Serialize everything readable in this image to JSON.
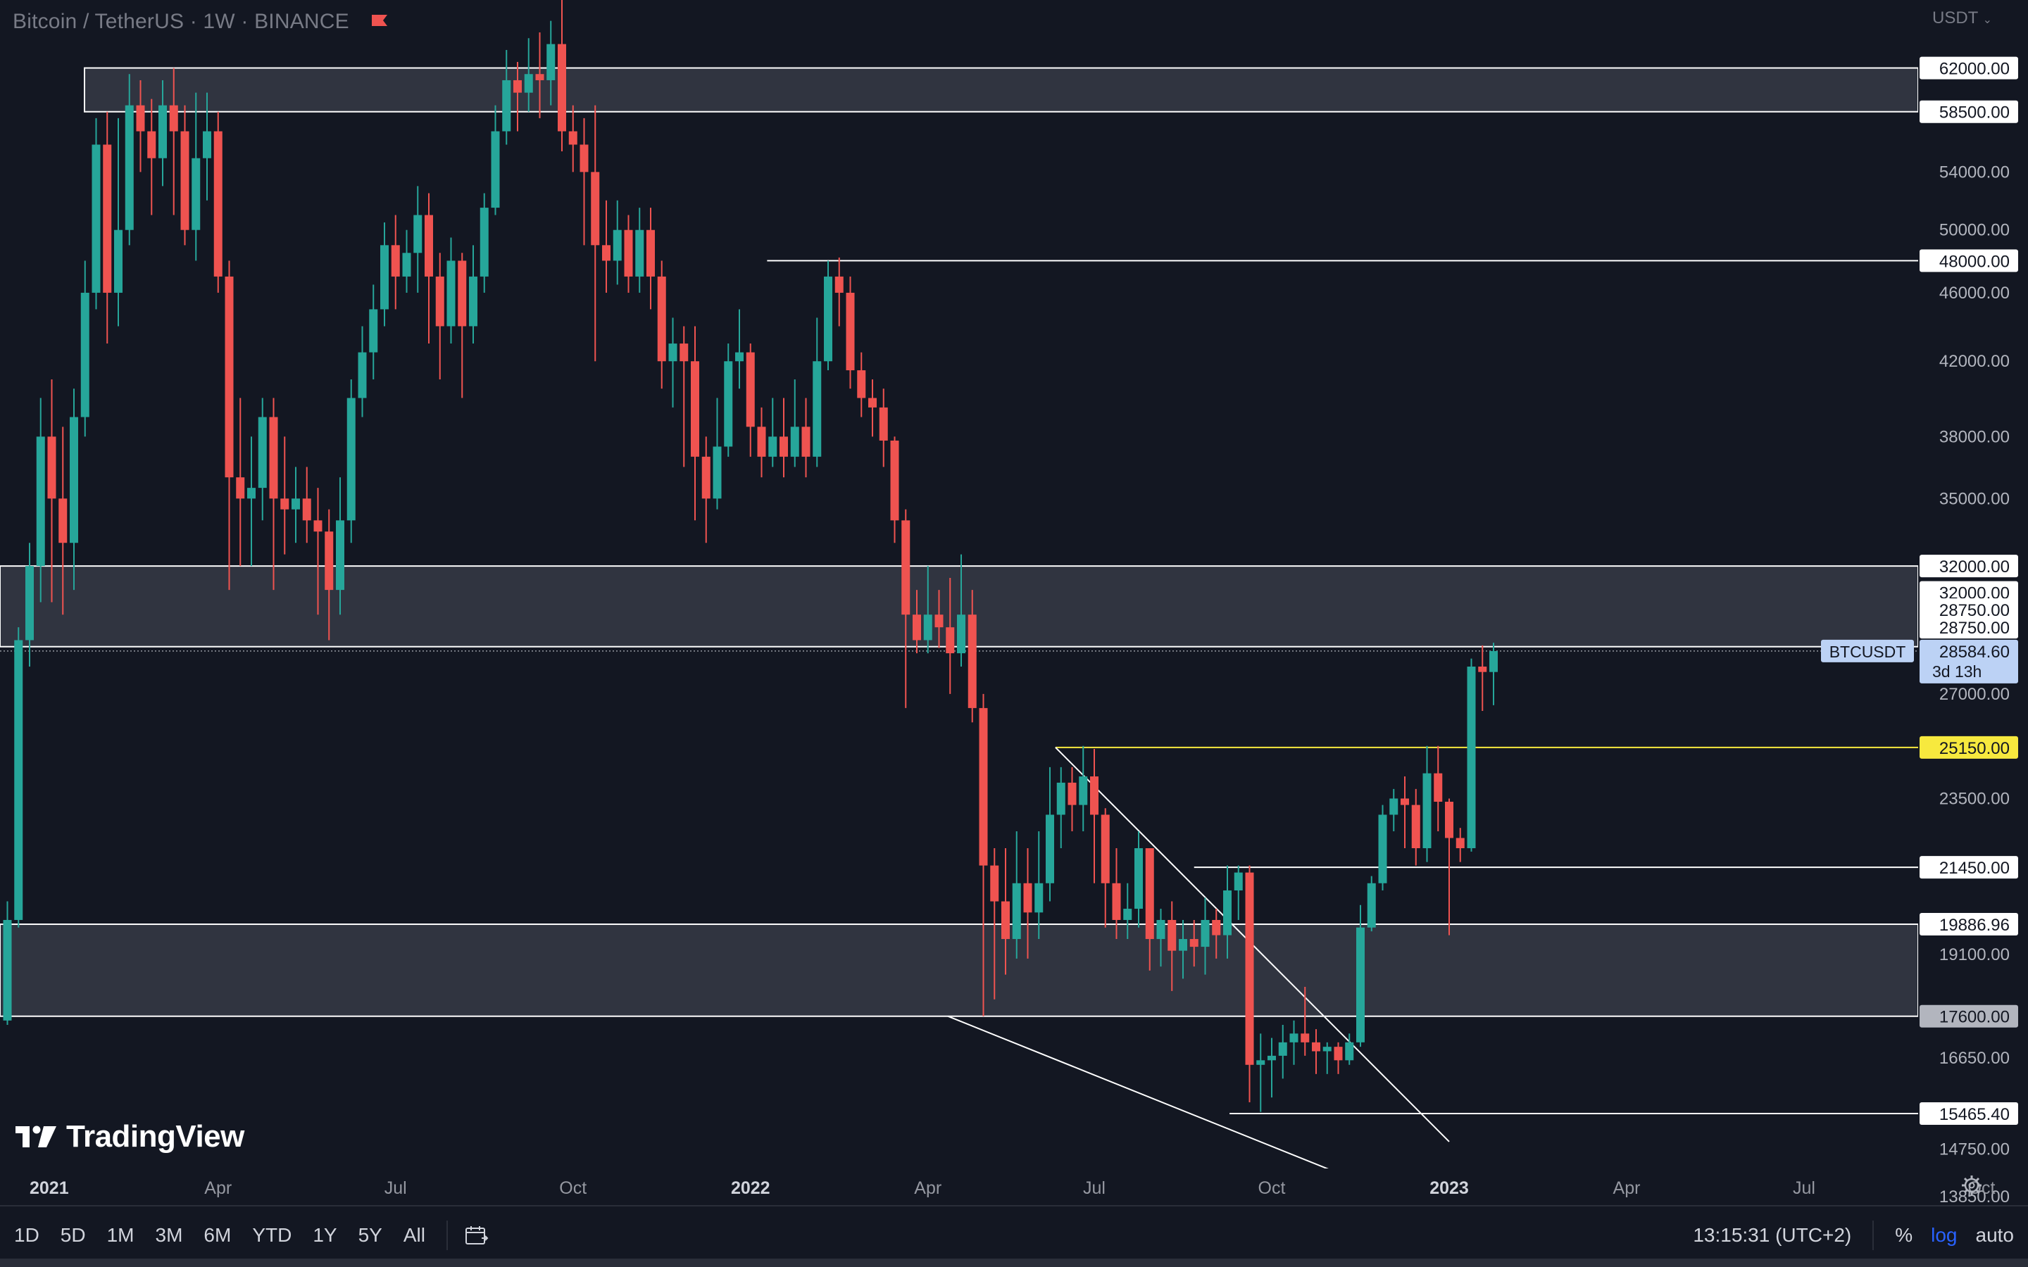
{
  "header": {
    "symbol_title": "Bitcoin / TetherUS · 1W · BINANCE",
    "currency": "USDT"
  },
  "chart_data": {
    "type": "candlestick",
    "scale": "log",
    "ylim": [
      13200,
      72000
    ],
    "xlim": [
      0,
      200
    ],
    "y_ticks": [
      "54000.00",
      "50000.00",
      "46000.00",
      "42000.00",
      "38000.00",
      "35000.00",
      "27000.00",
      "23500.00",
      "19100.00",
      "16650.00",
      "14750.00",
      "13850.00"
    ],
    "x_ticks": [
      {
        "label": "2021",
        "x": 2,
        "bold": true
      },
      {
        "label": "Apr",
        "x": 19
      },
      {
        "label": "Jul",
        "x": 35
      },
      {
        "label": "Oct",
        "x": 51
      },
      {
        "label": "2022",
        "x": 67,
        "bold": true
      },
      {
        "label": "Apr",
        "x": 83
      },
      {
        "label": "Jul",
        "x": 98
      },
      {
        "label": "Oct",
        "x": 114
      },
      {
        "label": "2023",
        "x": 130,
        "bold": true
      },
      {
        "label": "Apr",
        "x": 146
      },
      {
        "label": "Jul",
        "x": 162
      },
      {
        "label": "Oct",
        "x": 178
      }
    ],
    "candles": [
      [
        0,
        17500,
        20000,
        17400,
        20500
      ],
      [
        1,
        20000,
        29000,
        19800,
        29500
      ],
      [
        2,
        29000,
        32000,
        28000,
        33000
      ],
      [
        3,
        32000,
        38000,
        30500,
        40000
      ],
      [
        4,
        38000,
        35000,
        30500,
        41000
      ],
      [
        5,
        35000,
        33000,
        30000,
        38500
      ],
      [
        6,
        33000,
        39000,
        31000,
        40500
      ],
      [
        7,
        39000,
        46000,
        38000,
        48000
      ],
      [
        8,
        46000,
        56000,
        45000,
        58000
      ],
      [
        9,
        56000,
        46000,
        43000,
        58500
      ],
      [
        10,
        46000,
        50000,
        44000,
        58000
      ],
      [
        11,
        50000,
        59000,
        49000,
        61500
      ],
      [
        12,
        59000,
        57000,
        54000,
        61000
      ],
      [
        13,
        57000,
        55000,
        51000,
        59500
      ],
      [
        14,
        55000,
        59000,
        53000,
        61000
      ],
      [
        15,
        59000,
        57000,
        51000,
        62000
      ],
      [
        16,
        57000,
        50000,
        49000,
        59000
      ],
      [
        17,
        50000,
        55000,
        48000,
        60000
      ],
      [
        18,
        55000,
        57000,
        52000,
        60000
      ],
      [
        19,
        57000,
        47000,
        46000,
        58500
      ],
      [
        20,
        47000,
        36000,
        31000,
        48000
      ],
      [
        21,
        36000,
        35000,
        32000,
        40000
      ],
      [
        22,
        35000,
        35500,
        32000,
        38000
      ],
      [
        23,
        35500,
        39000,
        34000,
        40000
      ],
      [
        24,
        39000,
        35000,
        31000,
        40000
      ],
      [
        25,
        35000,
        34500,
        32500,
        38000
      ],
      [
        26,
        34500,
        35000,
        33000,
        36500
      ],
      [
        27,
        35000,
        34000,
        33000,
        36500
      ],
      [
        28,
        34000,
        33500,
        30000,
        35500
      ],
      [
        29,
        33500,
        31000,
        29000,
        34500
      ],
      [
        30,
        31000,
        34000,
        30000,
        36000
      ],
      [
        31,
        34000,
        40000,
        33000,
        41000
      ],
      [
        32,
        40000,
        42500,
        39000,
        44000
      ],
      [
        33,
        42500,
        45000,
        41000,
        46500
      ],
      [
        34,
        45000,
        49000,
        44000,
        50500
      ],
      [
        35,
        49000,
        47000,
        45000,
        51000
      ],
      [
        36,
        47000,
        48500,
        46000,
        50000
      ],
      [
        37,
        48500,
        51000,
        46000,
        53000
      ],
      [
        38,
        51000,
        47000,
        43000,
        52500
      ],
      [
        39,
        47000,
        44000,
        41000,
        48500
      ],
      [
        40,
        44000,
        48000,
        43000,
        49500
      ],
      [
        41,
        48000,
        44000,
        40000,
        48500
      ],
      [
        42,
        44000,
        47000,
        43000,
        49000
      ],
      [
        43,
        47000,
        51500,
        46000,
        52500
      ],
      [
        44,
        51500,
        57000,
        51000,
        59000
      ],
      [
        45,
        57000,
        61000,
        56000,
        63500
      ],
      [
        46,
        61000,
        60000,
        57000,
        62500
      ],
      [
        47,
        60000,
        61500,
        58500,
        64500
      ],
      [
        48,
        61500,
        61000,
        58000,
        65000
      ],
      [
        49,
        61000,
        64000,
        59000,
        66000
      ],
      [
        50,
        64000,
        57000,
        55500,
        68000
      ],
      [
        51,
        57000,
        56000,
        54000,
        59000
      ],
      [
        52,
        56000,
        54000,
        49000,
        58000
      ],
      [
        53,
        54000,
        49000,
        42000,
        59000
      ],
      [
        54,
        49000,
        48000,
        46000,
        52000
      ],
      [
        55,
        48000,
        50000,
        46500,
        52000
      ],
      [
        56,
        50000,
        47000,
        46000,
        51000
      ],
      [
        57,
        47000,
        50000,
        46000,
        51500
      ],
      [
        58,
        50000,
        47000,
        45000,
        51500
      ],
      [
        59,
        47000,
        42000,
        40500,
        48000
      ],
      [
        60,
        42000,
        43000,
        39500,
        44500
      ],
      [
        61,
        43000,
        42000,
        36500,
        44000
      ],
      [
        62,
        42000,
        37000,
        34000,
        44000
      ],
      [
        63,
        37000,
        35000,
        33000,
        38000
      ],
      [
        64,
        35000,
        37500,
        34500,
        40000
      ],
      [
        65,
        37500,
        42000,
        37000,
        43000
      ],
      [
        66,
        42000,
        42500,
        40500,
        45000
      ],
      [
        67,
        42500,
        38500,
        37000,
        43000
      ],
      [
        68,
        38500,
        37000,
        36000,
        39500
      ],
      [
        69,
        37000,
        38000,
        36500,
        40000
      ],
      [
        70,
        38000,
        37000,
        36000,
        40000
      ],
      [
        71,
        37000,
        38500,
        36500,
        41000
      ],
      [
        72,
        38500,
        37000,
        36000,
        40000
      ],
      [
        73,
        37000,
        42000,
        36500,
        44500
      ],
      [
        74,
        42000,
        47000,
        41500,
        48000
      ],
      [
        75,
        47000,
        46000,
        44000,
        48200
      ],
      [
        76,
        46000,
        41500,
        40500,
        47000
      ],
      [
        77,
        41500,
        40000,
        39000,
        42500
      ],
      [
        78,
        40000,
        39500,
        38000,
        41000
      ],
      [
        79,
        39500,
        37800,
        36500,
        40500
      ],
      [
        80,
        37800,
        34000,
        33000,
        38000
      ],
      [
        81,
        34000,
        30000,
        26500,
        34500
      ],
      [
        82,
        30000,
        29000,
        28500,
        31000
      ],
      [
        83,
        29000,
        30000,
        28500,
        32000
      ],
      [
        84,
        30000,
        29500,
        28700,
        31000
      ],
      [
        85,
        29500,
        28500,
        27000,
        31500
      ],
      [
        86,
        28500,
        30000,
        28000,
        32500
      ],
      [
        87,
        30000,
        26500,
        26000,
        31000
      ],
      [
        88,
        26500,
        21500,
        17600,
        27000
      ],
      [
        89,
        21500,
        20500,
        18000,
        22000
      ],
      [
        90,
        20500,
        19500,
        18600,
        22000
      ],
      [
        91,
        19500,
        21000,
        19000,
        22500
      ],
      [
        92,
        21000,
        20200,
        19000,
        22000
      ],
      [
        93,
        20200,
        21000,
        19500,
        22500
      ],
      [
        94,
        21000,
        23000,
        20500,
        24500
      ],
      [
        95,
        23000,
        24000,
        22000,
        24500
      ],
      [
        96,
        24000,
        23300,
        22500,
        24500
      ],
      [
        97,
        23300,
        24200,
        22500,
        25200
      ],
      [
        98,
        24200,
        23000,
        21000,
        25100
      ],
      [
        99,
        23000,
        21000,
        19800,
        23200
      ],
      [
        100,
        21000,
        20000,
        19500,
        22000
      ],
      [
        101,
        20000,
        20300,
        19500,
        21000
      ],
      [
        102,
        20300,
        22000,
        19800,
        22500
      ],
      [
        103,
        22000,
        19500,
        18700,
        22000
      ],
      [
        104,
        19500,
        20000,
        18800,
        20300
      ],
      [
        105,
        20000,
        19200,
        18200,
        20500
      ],
      [
        106,
        19200,
        19500,
        18500,
        20000
      ],
      [
        107,
        19500,
        19300,
        18800,
        20000
      ],
      [
        108,
        19300,
        20000,
        18600,
        20600
      ],
      [
        109,
        20000,
        19600,
        19000,
        20300
      ],
      [
        110,
        19600,
        20800,
        19000,
        21500
      ],
      [
        111,
        20800,
        21300,
        20000,
        21500
      ],
      [
        112,
        21300,
        16500,
        15700,
        21500
      ],
      [
        113,
        16500,
        16600,
        15500,
        17200
      ],
      [
        114,
        16600,
        16700,
        15800,
        17100
      ],
      [
        115,
        16700,
        17000,
        16200,
        17400
      ],
      [
        116,
        17000,
        17200,
        16500,
        17500
      ],
      [
        117,
        17200,
        17000,
        16700,
        18300
      ],
      [
        118,
        17000,
        16800,
        16300,
        17300
      ],
      [
        119,
        16800,
        16900,
        16300,
        17000
      ],
      [
        120,
        16900,
        16600,
        16300,
        17000
      ],
      [
        121,
        16600,
        17000,
        16500,
        17200
      ],
      [
        122,
        17000,
        19800,
        16900,
        20400
      ],
      [
        123,
        19800,
        21000,
        19700,
        21200
      ],
      [
        124,
        21000,
        23000,
        20800,
        23300
      ],
      [
        125,
        23000,
        23500,
        22500,
        23800
      ],
      [
        126,
        23500,
        23300,
        22000,
        24200
      ],
      [
        127,
        23300,
        22000,
        21500,
        23800
      ],
      [
        128,
        22000,
        24300,
        21600,
        25200
      ],
      [
        129,
        24300,
        23400,
        22500,
        25200
      ],
      [
        130,
        23400,
        22300,
        19600,
        23500
      ],
      [
        131,
        22300,
        22000,
        21600,
        22600
      ],
      [
        132,
        22000,
        28000,
        21900,
        28300
      ],
      [
        133,
        28000,
        27800,
        26400,
        28800
      ],
      [
        134,
        27800,
        28584.6,
        26600,
        28900
      ]
    ],
    "zones": [
      {
        "top": 62000,
        "bottom": 58500
      },
      {
        "top": 32000,
        "bottom": 28750
      },
      {
        "top": 19886.96,
        "bottom": 17600
      }
    ],
    "trendlines": [
      {
        "points": [
          [
            94.5,
            25150
          ],
          [
            130,
            14900
          ]
        ]
      },
      {
        "points": [
          [
            84.8,
            17600
          ],
          [
            130,
            13470
          ]
        ]
      }
    ],
    "horizontal_segments": [
      {
        "price": 48000,
        "from": 68.5,
        "color": "#ffffff"
      },
      {
        "price": 25150,
        "from": 94.5,
        "color": "#f7e93e"
      },
      {
        "price": 21450,
        "from": 107,
        "color": "#ffffff"
      },
      {
        "price": 15465.4,
        "from": 110.2,
        "color": "#ffffff"
      }
    ],
    "price_labels": [
      {
        "price": 62000,
        "text": "62000.00",
        "style": "white"
      },
      {
        "price": 58500,
        "text": "58500.00",
        "style": "white"
      },
      {
        "price": 48000,
        "text": "48000.00",
        "style": "white"
      },
      {
        "price": 32000,
        "text": "32000.00",
        "style": "white",
        "display_at": 30900
      },
      {
        "price": 32000,
        "text": "32000.00",
        "style": "white"
      },
      {
        "price": 28750,
        "text": "28750.00",
        "style": "white",
        "display_at": 30200
      },
      {
        "price": 28750,
        "text": "28750.00",
        "style": "white",
        "display_at": 29500
      },
      {
        "price": 25150,
        "text": "25150.00",
        "style": "yellow"
      },
      {
        "price": 21450,
        "text": "21450.00",
        "style": "white"
      },
      {
        "price": 19886.96,
        "text": "19886.96",
        "style": "white"
      },
      {
        "price": 17600,
        "text": "17600.00",
        "style": "gray"
      },
      {
        "price": 15465.4,
        "text": "15465.40",
        "style": "white"
      }
    ],
    "current_price": {
      "symbol": "BTCUSDT",
      "price": 28584.6,
      "text": "28584.60",
      "countdown": "3d 13h"
    },
    "up_color": "#26a69a",
    "down_color": "#ef5350"
  },
  "footer": {
    "timeframes": [
      "1D",
      "5D",
      "1M",
      "3M",
      "6M",
      "YTD",
      "1Y",
      "5Y",
      "All"
    ],
    "clock": "13:15:31 (UTC+2)",
    "percent": "%",
    "log": "log",
    "auto": "auto"
  },
  "branding": {
    "logo_text": "TradingView"
  }
}
